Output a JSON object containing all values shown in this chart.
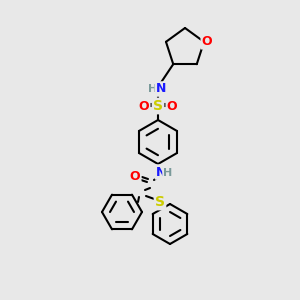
{
  "bg_color": "#e8e8e8",
  "bond_color": "#000000",
  "bond_width": 1.5,
  "atom_colors": {
    "C": "#000000",
    "H": "#7a9a9a",
    "N": "#1a1aff",
    "O": "#ff0000",
    "S_sulfonyl": "#cccc00",
    "S_thio": "#cccc00"
  },
  "font_size": 8,
  "fig_size": [
    3.0,
    3.0
  ],
  "dpi": 100
}
